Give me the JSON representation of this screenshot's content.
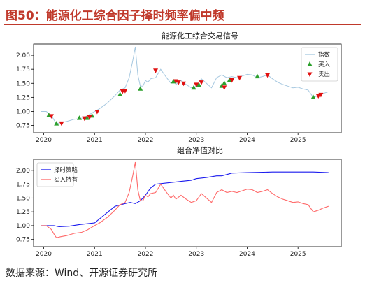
{
  "header": {
    "title": "图50：能源化工综合因子择时频率偏中频"
  },
  "footer": {
    "source": "数据来源：Wind、开源证券研究所"
  },
  "chart_data": [
    {
      "type": "line",
      "title": "能源化工综合交易信号",
      "xlabel": "",
      "ylabel": "",
      "xlim": [
        2019.8,
        2025.85
      ],
      "ylim": [
        0.62,
        2.2
      ],
      "xticks": [
        2020,
        2021,
        2022,
        2023,
        2024,
        2025
      ],
      "yticks": [
        0.75,
        1.0,
        1.25,
        1.5,
        1.75,
        2.0
      ],
      "grid": false,
      "legend": "top-right",
      "colors": {
        "index": "#a6c8e0",
        "buy": "#2ca02c",
        "sell": "#e01010"
      },
      "series": [
        {
          "name": "指数",
          "kind": "line",
          "x": [
            2019.95,
            2020.05,
            2020.15,
            2020.2,
            2020.25,
            2020.33,
            2020.45,
            2020.6,
            2020.75,
            2020.85,
            2021.0,
            2021.1,
            2021.25,
            2021.4,
            2021.5,
            2021.6,
            2021.68,
            2021.75,
            2021.8,
            2021.85,
            2021.9,
            2021.95,
            2022.0,
            2022.05,
            2022.1,
            2022.2,
            2022.3,
            2022.4,
            2022.5,
            2022.55,
            2022.6,
            2022.7,
            2022.8,
            2022.9,
            2023.0,
            2023.1,
            2023.2,
            2023.3,
            2023.4,
            2023.5,
            2023.6,
            2023.7,
            2023.8,
            2023.9,
            2024.0,
            2024.1,
            2024.2,
            2024.3,
            2024.4,
            2024.5,
            2024.6,
            2024.7,
            2024.8,
            2024.9,
            2025.0,
            2025.1,
            2025.2,
            2025.3,
            2025.4,
            2025.5,
            2025.6
          ],
          "y": [
            1.0,
            1.0,
            0.93,
            0.85,
            0.78,
            0.8,
            0.82,
            0.86,
            0.88,
            0.92,
            1.0,
            1.05,
            1.15,
            1.28,
            1.38,
            1.42,
            1.6,
            1.9,
            2.15,
            1.65,
            1.45,
            1.45,
            1.55,
            1.52,
            1.58,
            1.6,
            1.75,
            1.62,
            1.5,
            1.55,
            1.48,
            1.55,
            1.48,
            1.42,
            1.45,
            1.58,
            1.5,
            1.42,
            1.6,
            1.65,
            1.6,
            1.62,
            1.6,
            1.63,
            1.66,
            1.65,
            1.6,
            1.62,
            1.65,
            1.58,
            1.52,
            1.48,
            1.45,
            1.42,
            1.43,
            1.4,
            1.38,
            1.25,
            1.28,
            1.32,
            1.35
          ]
        },
        {
          "name": "买入",
          "kind": "marker",
          "x": [
            2020.1,
            2020.25,
            2020.7,
            2020.85,
            2020.95,
            2021.5,
            2021.9,
            2022.55,
            2022.95,
            2023.05,
            2023.5,
            2023.55,
            2023.65,
            2024.2,
            2025.3
          ],
          "y": [
            0.93,
            0.78,
            0.88,
            0.88,
            0.92,
            1.3,
            1.4,
            1.53,
            1.42,
            1.47,
            1.45,
            1.5,
            1.55,
            1.62,
            1.25
          ]
        },
        {
          "name": "卖出",
          "kind": "marker",
          "x": [
            2020.15,
            2020.35,
            2020.8,
            2020.9,
            2021.05,
            2021.55,
            2021.6,
            2022.2,
            2022.6,
            2022.65,
            2022.75,
            2023.0,
            2023.1,
            2023.55,
            2023.7,
            2023.85,
            2024.4,
            2025.4,
            2025.45
          ],
          "y": [
            0.92,
            0.79,
            0.88,
            0.9,
            1.0,
            1.36,
            1.37,
            1.73,
            1.54,
            1.52,
            1.5,
            1.48,
            1.52,
            1.43,
            1.56,
            1.6,
            1.65,
            1.28,
            1.3
          ]
        }
      ]
    },
    {
      "type": "line",
      "title": "组合净值对比",
      "xlabel": "",
      "ylabel": "",
      "xlim": [
        2019.8,
        2025.85
      ],
      "ylim": [
        0.62,
        2.2
      ],
      "xticks": [
        2020,
        2021,
        2022,
        2023,
        2024,
        2025
      ],
      "yticks": [
        0.75,
        1.0,
        1.25,
        1.5,
        1.75,
        2.0
      ],
      "grid": false,
      "legend": "top-left",
      "colors": {
        "timing": "#1a1aee",
        "buyhold": "#ff6a6a"
      },
      "series": [
        {
          "name": "择时策略",
          "kind": "line",
          "x": [
            2019.95,
            2020.2,
            2020.3,
            2020.5,
            2020.7,
            2020.9,
            2021.0,
            2021.2,
            2021.4,
            2021.6,
            2021.7,
            2021.8,
            2021.9,
            2022.0,
            2022.1,
            2022.2,
            2022.5,
            2022.7,
            2022.9,
            2023.0,
            2023.2,
            2023.4,
            2023.5,
            2023.7,
            2024.0,
            2024.5,
            2025.0,
            2025.3,
            2025.6
          ],
          "y": [
            1.0,
            1.0,
            0.98,
            0.99,
            1.02,
            1.04,
            1.05,
            1.2,
            1.35,
            1.4,
            1.42,
            1.4,
            1.45,
            1.55,
            1.68,
            1.75,
            1.78,
            1.8,
            1.82,
            1.85,
            1.87,
            1.9,
            1.9,
            1.95,
            1.96,
            1.97,
            1.97,
            1.97,
            1.96
          ]
        },
        {
          "name": "买入持有",
          "kind": "line",
          "x": [
            2019.95,
            2020.05,
            2020.15,
            2020.2,
            2020.25,
            2020.33,
            2020.45,
            2020.6,
            2020.75,
            2020.85,
            2021.0,
            2021.1,
            2021.25,
            2021.4,
            2021.5,
            2021.6,
            2021.68,
            2021.75,
            2021.8,
            2021.85,
            2021.9,
            2021.95,
            2022.0,
            2022.05,
            2022.1,
            2022.2,
            2022.3,
            2022.4,
            2022.5,
            2022.55,
            2022.6,
            2022.7,
            2022.8,
            2022.9,
            2023.0,
            2023.1,
            2023.2,
            2023.3,
            2023.4,
            2023.5,
            2023.6,
            2023.7,
            2023.8,
            2023.9,
            2024.0,
            2024.1,
            2024.2,
            2024.3,
            2024.4,
            2024.5,
            2024.6,
            2024.7,
            2024.8,
            2024.9,
            2025.0,
            2025.1,
            2025.2,
            2025.3,
            2025.4,
            2025.5,
            2025.6
          ],
          "y": [
            1.0,
            1.0,
            0.93,
            0.85,
            0.78,
            0.8,
            0.82,
            0.86,
            0.88,
            0.92,
            1.0,
            1.05,
            1.15,
            1.28,
            1.38,
            1.42,
            1.6,
            1.9,
            2.15,
            1.65,
            1.45,
            1.45,
            1.55,
            1.52,
            1.58,
            1.6,
            1.75,
            1.62,
            1.5,
            1.55,
            1.48,
            1.55,
            1.48,
            1.42,
            1.45,
            1.58,
            1.5,
            1.42,
            1.6,
            1.65,
            1.6,
            1.62,
            1.6,
            1.63,
            1.66,
            1.65,
            1.6,
            1.62,
            1.65,
            1.58,
            1.52,
            1.48,
            1.45,
            1.42,
            1.43,
            1.4,
            1.38,
            1.25,
            1.28,
            1.32,
            1.35
          ]
        }
      ]
    }
  ]
}
